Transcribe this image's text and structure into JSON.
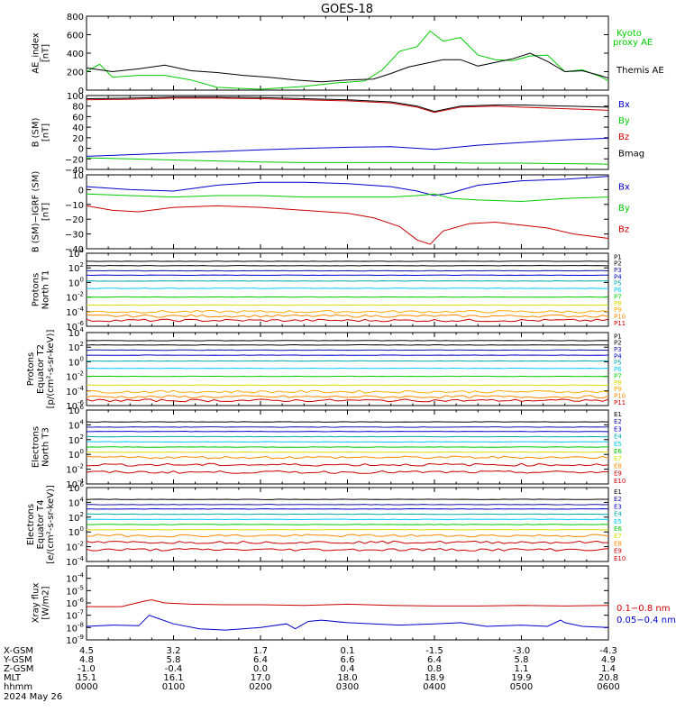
{
  "title": "GOES-18",
  "colors": {
    "black": "#000000",
    "green": "#00cc00",
    "blue": "#0000cc",
    "red": "#cc0000",
    "navy": "#1010aa",
    "teal": "#00aaaa",
    "cyan": "#00c8ff",
    "orange": "#ff8800",
    "yellow": "#dddd00",
    "gold": "#ffaa00"
  },
  "x_ticks": [
    "0000",
    "0100",
    "0200",
    "0300",
    "0400",
    "0500",
    "0600"
  ],
  "ephemeris": {
    "rows": [
      {
        "label": "X-GSM",
        "values": [
          "4.5",
          "3.2",
          "1.7",
          "0.1",
          "-1.5",
          "-3.0",
          "-4.3"
        ]
      },
      {
        "label": "Y-GSM",
        "values": [
          "4.8",
          "5.8",
          "6.4",
          "6.6",
          "6.4",
          "5.8",
          "4.9"
        ]
      },
      {
        "label": "Z-GSM",
        "values": [
          "-1.0",
          "-0.4",
          "0.0",
          "0.4",
          "0.8",
          "1.1",
          "1.4"
        ]
      },
      {
        "label": "MLT",
        "values": [
          "15.1",
          "16.1",
          "17.0",
          "18.0",
          "18.9",
          "19.9",
          "20.8"
        ]
      },
      {
        "label": "hhmm",
        "values": [
          "0000",
          "0100",
          "0200",
          "0300",
          "0400",
          "0500",
          "0600"
        ]
      }
    ],
    "date": "2024 May 26"
  },
  "chart_data": [
    {
      "type": "line",
      "ylabel": [
        "AE_index",
        "[nT]"
      ],
      "ylim": [
        0,
        800
      ],
      "yticks": [
        "0",
        "200",
        "400",
        "600",
        "800"
      ],
      "series": [
        {
          "name": "Kyoto proxy AE",
          "color": "green",
          "x": [
            0,
            0.15,
            0.3,
            0.6,
            0.9,
            1.2,
            1.5,
            2.0,
            2.5,
            2.9,
            3.2,
            3.4,
            3.6,
            3.8,
            3.95,
            4.1,
            4.3,
            4.5,
            4.7,
            4.9,
            5.1,
            5.3,
            5.5,
            5.7,
            5.9,
            6.0
          ],
          "values": [
            200,
            280,
            140,
            160,
            160,
            110,
            30,
            10,
            40,
            80,
            100,
            220,
            420,
            470,
            640,
            530,
            570,
            380,
            330,
            320,
            370,
            380,
            200,
            220,
            150,
            100
          ]
        },
        {
          "name": "Themis AE",
          "color": "black",
          "x": [
            0,
            0.3,
            0.6,
            0.9,
            1.2,
            1.5,
            1.8,
            2.1,
            2.4,
            2.7,
            3.0,
            3.3,
            3.5,
            3.7,
            3.9,
            4.1,
            4.3,
            4.5,
            4.7,
            4.9,
            5.1,
            5.3,
            5.5,
            5.7,
            5.9,
            6.0
          ],
          "values": [
            240,
            200,
            230,
            270,
            210,
            190,
            160,
            140,
            110,
            90,
            110,
            120,
            180,
            250,
            290,
            330,
            330,
            260,
            300,
            340,
            400,
            310,
            200,
            210,
            160,
            130
          ]
        }
      ],
      "legend": [
        "Kyoto",
        "proxy AE",
        "Themis AE"
      ]
    },
    {
      "type": "line",
      "ylabel": [
        "B (SM)",
        "[nT]"
      ],
      "ylim": [
        -40,
        100
      ],
      "yticks": [
        "−40",
        "−20",
        "0",
        "20",
        "40",
        "60",
        "80",
        "100"
      ],
      "series": [
        {
          "name": "Bx",
          "color": "blue",
          "x": [
            0,
            0.5,
            1,
            1.5,
            2,
            2.5,
            3,
            3.5,
            4,
            4.5,
            5,
            5.5,
            6
          ],
          "values": [
            -15,
            -12,
            -9,
            -6,
            -3,
            0,
            2,
            3,
            -2,
            6,
            11,
            16,
            19
          ]
        },
        {
          "name": "By",
          "color": "green",
          "x": [
            0,
            0.5,
            1,
            1.5,
            2,
            2.5,
            3,
            3.5,
            4,
            4.5,
            5,
            5.5,
            6
          ],
          "values": [
            -18,
            -20,
            -22,
            -24,
            -26,
            -27,
            -27,
            -27,
            -27,
            -28,
            -28,
            -29,
            -30
          ]
        },
        {
          "name": "Bz",
          "color": "red",
          "x": [
            0,
            0.5,
            1,
            1.5,
            2,
            2.5,
            3,
            3.5,
            3.8,
            4,
            4.3,
            4.7,
            5,
            5.5,
            6
          ],
          "values": [
            92,
            93,
            95,
            95,
            94,
            92,
            90,
            86,
            78,
            68,
            78,
            80,
            78,
            75,
            72
          ]
        },
        {
          "name": "Bmag",
          "color": "black",
          "x": [
            0,
            0.5,
            1,
            1.5,
            2,
            2.5,
            3,
            3.5,
            3.8,
            4,
            4.3,
            4.7,
            5,
            5.5,
            6
          ],
          "values": [
            94,
            95,
            97,
            97,
            96,
            94,
            92,
            88,
            80,
            70,
            80,
            82,
            82,
            80,
            78
          ]
        }
      ],
      "legend": [
        "Bx",
        "By",
        "Bz",
        "Bmag"
      ]
    },
    {
      "type": "line",
      "ylabel": [
        "B (SM)−IGRF (SM)",
        "[nT]"
      ],
      "ylim": [
        -40,
        10
      ],
      "yticks": [
        "−40",
        "−30",
        "−20",
        "−10",
        "0",
        "10"
      ],
      "series": [
        {
          "name": "Bx",
          "color": "blue",
          "x": [
            0,
            0.5,
            1,
            1.5,
            2,
            2.5,
            3,
            3.5,
            3.8,
            4,
            4.2,
            4.5,
            5,
            5.5,
            6
          ],
          "values": [
            2,
            0,
            -1,
            3,
            5,
            5,
            4,
            2,
            -1,
            -4,
            -2,
            3,
            6,
            7,
            9
          ]
        },
        {
          "name": "By",
          "color": "green",
          "x": [
            0,
            0.5,
            1,
            1.5,
            2,
            2.5,
            3,
            3.5,
            3.8,
            4,
            4.2,
            4.5,
            5,
            5.5,
            6
          ],
          "values": [
            -3,
            -4,
            -5,
            -4,
            -4,
            -5,
            -5,
            -5,
            -4,
            -3,
            -6,
            -7,
            -8,
            -6,
            -5
          ]
        },
        {
          "name": "Bz",
          "color": "red",
          "x": [
            0,
            0.3,
            0.6,
            1,
            1.5,
            2,
            2.5,
            3,
            3.3,
            3.6,
            3.8,
            3.95,
            4.1,
            4.4,
            4.7,
            5,
            5.3,
            5.6,
            6
          ],
          "values": [
            -11,
            -14,
            -15,
            -12,
            -11,
            -12,
            -14,
            -16,
            -19,
            -25,
            -34,
            -37,
            -28,
            -23,
            -22,
            -24,
            -26,
            -30,
            -33
          ]
        }
      ],
      "legend": [
        "Bx",
        "By",
        "Bz"
      ]
    },
    {
      "type": "line",
      "log": true,
      "ylabel": [
        "Protons",
        "North T1"
      ],
      "ylim_exp": [
        -6,
        4
      ],
      "yticks_exp": [
        -6,
        -4,
        -2,
        0,
        2,
        4
      ],
      "series": [
        {
          "name": "P1",
          "color": "black",
          "log10": 2.9
        },
        {
          "name": "P2",
          "color": "black",
          "log10": 2.3
        },
        {
          "name": "P3",
          "color": "navy",
          "log10": 1.6
        },
        {
          "name": "P4",
          "color": "blue",
          "log10": 1.0
        },
        {
          "name": "P5",
          "color": "teal",
          "log10": 0.2
        },
        {
          "name": "P6",
          "color": "cyan",
          "log10": -0.8
        },
        {
          "name": "P7",
          "color": "green",
          "log10": -2.0
        },
        {
          "name": "P8",
          "color": "yellow",
          "log10": -3.1
        },
        {
          "name": "P9",
          "color": "gold",
          "log10": -4.0
        },
        {
          "name": "P10",
          "color": "orange",
          "log10": -4.6
        },
        {
          "name": "P11",
          "color": "red",
          "log10": -5.2
        }
      ]
    },
    {
      "type": "line",
      "log": true,
      "ylabel": [
        "Protons",
        "Equator T2",
        "[p/(cm²-s-sr-keV)]"
      ],
      "ylim_exp": [
        -6,
        4
      ],
      "yticks_exp": [
        -6,
        -4,
        -2,
        0,
        2,
        4
      ],
      "series": [
        {
          "name": "P1",
          "color": "black",
          "log10": 2.9
        },
        {
          "name": "P2",
          "color": "black",
          "log10": 2.3
        },
        {
          "name": "P3",
          "color": "navy",
          "log10": 1.6
        },
        {
          "name": "P4",
          "color": "blue",
          "log10": 0.9
        },
        {
          "name": "P5",
          "color": "teal",
          "log10": 0.1
        },
        {
          "name": "P6",
          "color": "cyan",
          "log10": -0.9
        },
        {
          "name": "P7",
          "color": "green",
          "log10": -2.0
        },
        {
          "name": "P8",
          "color": "yellow",
          "log10": -3.2
        },
        {
          "name": "P9",
          "color": "gold",
          "log10": -4.1
        },
        {
          "name": "P10",
          "color": "orange",
          "log10": -4.8
        },
        {
          "name": "P11",
          "color": "red",
          "log10": -5.3
        }
      ]
    },
    {
      "type": "line",
      "log": true,
      "ylabel": [
        "Electrons",
        "North T3"
      ],
      "ylim_exp": [
        -4,
        6
      ],
      "yticks_exp": [
        -4,
        -2,
        0,
        2,
        4,
        6
      ],
      "series": [
        {
          "name": "E1",
          "color": "black",
          "log10": 4.4
        },
        {
          "name": "E2",
          "color": "navy",
          "log10": 3.7
        },
        {
          "name": "E3",
          "color": "blue",
          "log10": 3.1
        },
        {
          "name": "E4",
          "color": "teal",
          "log10": 2.4
        },
        {
          "name": "E5",
          "color": "cyan",
          "log10": 1.7
        },
        {
          "name": "E6",
          "color": "green",
          "log10": 1.0
        },
        {
          "name": "E7",
          "color": "yellow",
          "log10": 0.3
        },
        {
          "name": "E8",
          "color": "orange",
          "log10": -0.4
        },
        {
          "name": "E9",
          "color": "red",
          "log10": -1.4
        },
        {
          "name": "E10",
          "color": "red",
          "log10": -2.4
        }
      ]
    },
    {
      "type": "line",
      "log": true,
      "ylabel": [
        "Electrons",
        "Equator T4",
        "[e/(cm²-s-sr-keV)]"
      ],
      "ylim_exp": [
        -4,
        6
      ],
      "yticks_exp": [
        -4,
        -2,
        0,
        2,
        4,
        6
      ],
      "series": [
        {
          "name": "E1",
          "color": "black",
          "log10": 4.4
        },
        {
          "name": "E2",
          "color": "navy",
          "log10": 3.7
        },
        {
          "name": "E3",
          "color": "blue",
          "log10": 3.1
        },
        {
          "name": "E4",
          "color": "teal",
          "log10": 2.4
        },
        {
          "name": "E5",
          "color": "cyan",
          "log10": 1.7
        },
        {
          "name": "E6",
          "color": "green",
          "log10": 1.0
        },
        {
          "name": "E7",
          "color": "yellow",
          "log10": 0.3
        },
        {
          "name": "E8",
          "color": "orange",
          "log10": -0.5
        },
        {
          "name": "E9",
          "color": "red",
          "log10": -1.4
        },
        {
          "name": "E10",
          "color": "red",
          "log10": -2.4
        }
      ]
    },
    {
      "type": "line",
      "log": true,
      "ylabel": [
        "Xray flux",
        "[W/m2]"
      ],
      "ylim_exp": [
        -9,
        -3
      ],
      "yticks_exp": [
        -9,
        -8,
        -7,
        -6,
        -5,
        -4
      ],
      "series": [
        {
          "name": "0.1−0.8 nm",
          "color": "red",
          "x": [
            0,
            0.4,
            0.7,
            0.75,
            0.9,
            1.2,
            1.6,
            2.0,
            2.5,
            3.0,
            3.5,
            4.0,
            4.5,
            5.0,
            5.5,
            6.0
          ],
          "log10": [
            -6.3,
            -6.3,
            -5.8,
            -5.75,
            -6.0,
            -6.1,
            -6.15,
            -6.15,
            -6.2,
            -6.1,
            -6.2,
            -6.25,
            -6.25,
            -6.2,
            -6.25,
            -6.2
          ]
        },
        {
          "name": "0.05−0.4 nm",
          "color": "blue",
          "x": [
            0,
            0.3,
            0.6,
            0.72,
            0.8,
            1.0,
            1.3,
            1.6,
            2.0,
            2.3,
            2.4,
            2.55,
            2.7,
            3.0,
            3.3,
            3.6,
            4.0,
            4.3,
            4.6,
            5.0,
            5.3,
            5.45,
            5.5,
            5.7,
            6.0
          ],
          "log10": [
            -7.9,
            -7.8,
            -7.85,
            -7.0,
            -7.2,
            -7.7,
            -8.1,
            -8.2,
            -8.0,
            -7.7,
            -8.1,
            -7.5,
            -7.4,
            -7.6,
            -7.7,
            -7.8,
            -7.7,
            -7.6,
            -7.9,
            -7.8,
            -7.9,
            -7.4,
            -7.6,
            -7.9,
            -8.0
          ]
        }
      ],
      "legend": [
        "0.1−0.8 nm",
        "0.05−0.4 nm"
      ]
    }
  ]
}
